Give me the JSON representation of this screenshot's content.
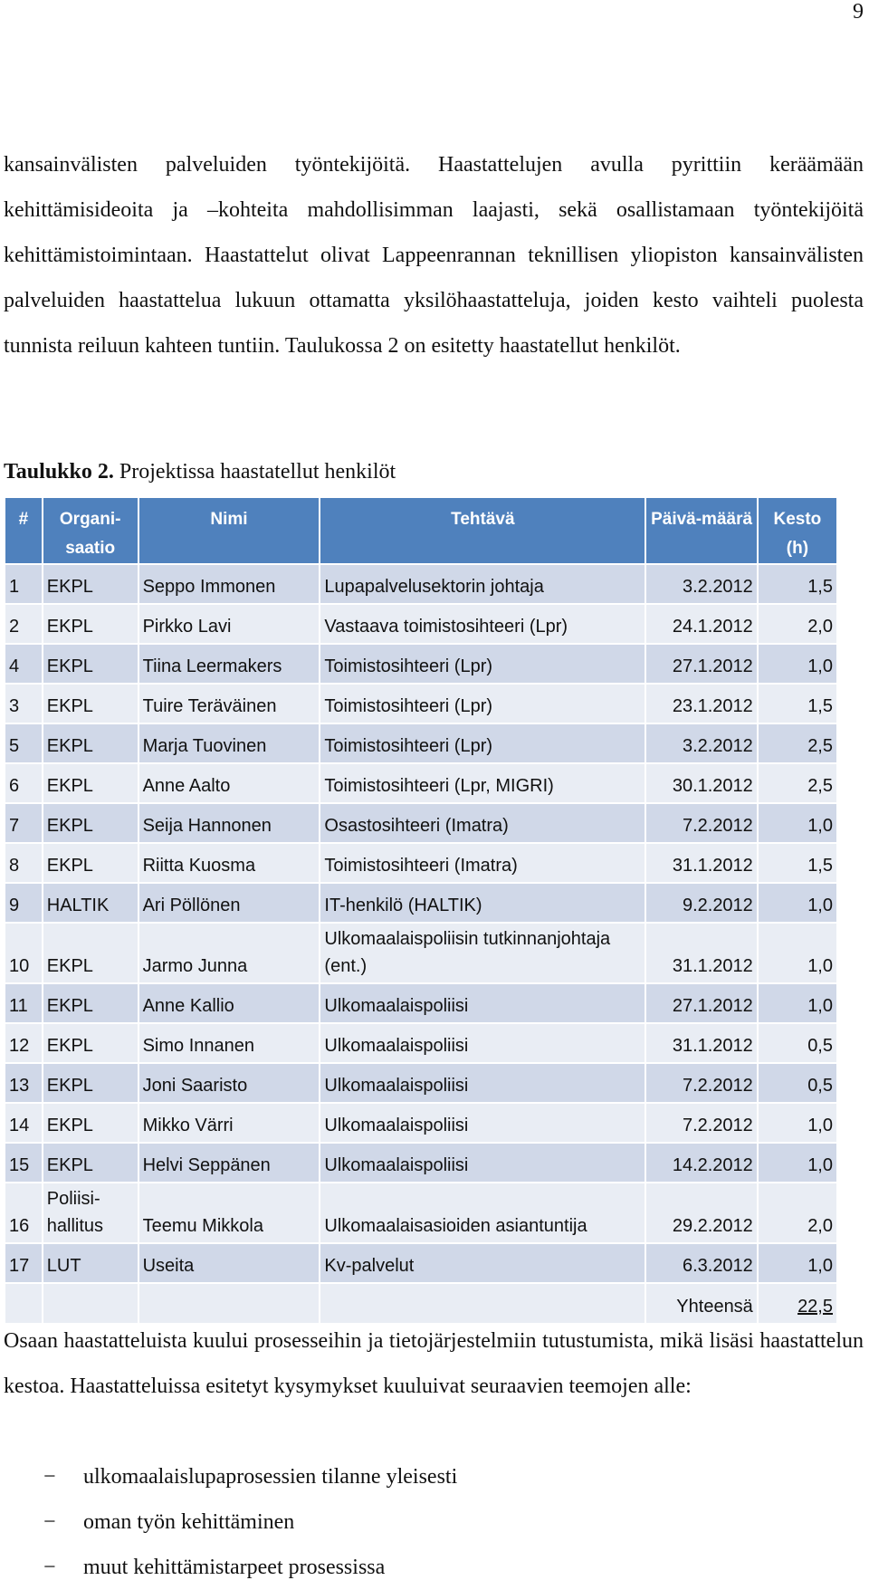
{
  "page_number": "9",
  "intro_paragraph": "kansainvälisten palveluiden työntekijöitä. Haastattelujen avulla pyrittiin keräämään kehittämisideoita ja –kohteita mahdollisimman laajasti, sekä osallistamaan työntekijöitä kehittämistoimintaan. Haastattelut olivat Lappeenrannan teknillisen yliopiston kansainvälisten palveluiden haastattelua lukuun ottamatta yksilöhaastatteluja, joiden kesto vaihteli puolesta tunnista reiluun kahteen tuntiin. Taulukossa 2 on esitetty haastatellut henkilöt.",
  "caption": {
    "label": "Taulukko 2.",
    "text": " Projektissa haastatellut henkilöt"
  },
  "table": {
    "headers": [
      "#",
      "Organi-saatio",
      "Nimi",
      "Tehtävä",
      "Päivä-määrä",
      "Kesto (h)"
    ],
    "rows": [
      [
        "1",
        "EKPL",
        "Seppo Immonen",
        "Lupapalvelusektorin johtaja",
        "3.2.2012",
        "1,5"
      ],
      [
        "2",
        "EKPL",
        "Pirkko Lavi",
        "Vastaava toimistosihteeri (Lpr)",
        "24.1.2012",
        "2,0"
      ],
      [
        "4",
        "EKPL",
        "Tiina Leermakers",
        "Toimistosihteeri (Lpr)",
        "27.1.2012",
        "1,0"
      ],
      [
        "3",
        "EKPL",
        "Tuire Teräväinen",
        "Toimistosihteeri (Lpr)",
        "23.1.2012",
        "1,5"
      ],
      [
        "5",
        "EKPL",
        "Marja Tuovinen",
        "Toimistosihteeri (Lpr)",
        "3.2.2012",
        "2,5"
      ],
      [
        "6",
        "EKPL",
        "Anne Aalto",
        "Toimistosihteeri (Lpr, MIGRI)",
        "30.1.2012",
        "2,5"
      ],
      [
        "7",
        "EKPL",
        "Seija Hannonen",
        "Osastosihteeri (Imatra)",
        "7.2.2012",
        "1,0"
      ],
      [
        "8",
        "EKPL",
        "Riitta Kuosma",
        "Toimistosihteeri (Imatra)",
        "31.1.2012",
        "1,5"
      ],
      [
        "9",
        "HALTIK",
        "Ari Pöllönen",
        "IT-henkilö (HALTIK)",
        "9.2.2012",
        "1,0"
      ],
      [
        "10",
        "EKPL",
        "Jarmo Junna",
        "Ulkomaalaispoliisin tutkinnanjohtaja (ent.)",
        "31.1.2012",
        "1,0"
      ],
      [
        "11",
        "EKPL",
        "Anne Kallio",
        "Ulkomaalaispoliisi",
        "27.1.2012",
        "1,0"
      ],
      [
        "12",
        "EKPL",
        "Simo Innanen",
        "Ulkomaalaispoliisi",
        "31.1.2012",
        "0,5"
      ],
      [
        "13",
        "EKPL",
        "Joni Saaristo",
        "Ulkomaalaispoliisi",
        "7.2.2012",
        "0,5"
      ],
      [
        "14",
        "EKPL",
        "Mikko Värri",
        "Ulkomaalaispoliisi",
        "7.2.2012",
        "1,0"
      ],
      [
        "15",
        "EKPL",
        "Helvi Seppänen",
        "Ulkomaalaispoliisi",
        "14.2.2012",
        "1,0"
      ],
      [
        "16",
        "Poliisi-hallitus",
        "Teemu Mikkola",
        "Ulkomaalaisasioiden asiantuntija",
        "29.2.2012",
        "2,0"
      ],
      [
        "17",
        "LUT",
        "Useita",
        "Kv-palvelut",
        "6.3.2012",
        "1,0"
      ]
    ],
    "total_label": "Yhteensä",
    "total_value": "22,5"
  },
  "closing_paragraph": "Osaan haastatteluista kuului prosesseihin ja tietojärjestelmiin tutustumista, mikä lisäsi haastattelun kestoa. Haastatteluissa esitetyt kysymykset kuuluivat seuraavien teemojen alle:",
  "themes": [
    "ulkomaalaislupaprosessien tilanne yleisesti",
    "oman työn kehittäminen",
    "muut kehittämistarpeet prosessissa"
  ],
  "bullet": "−"
}
